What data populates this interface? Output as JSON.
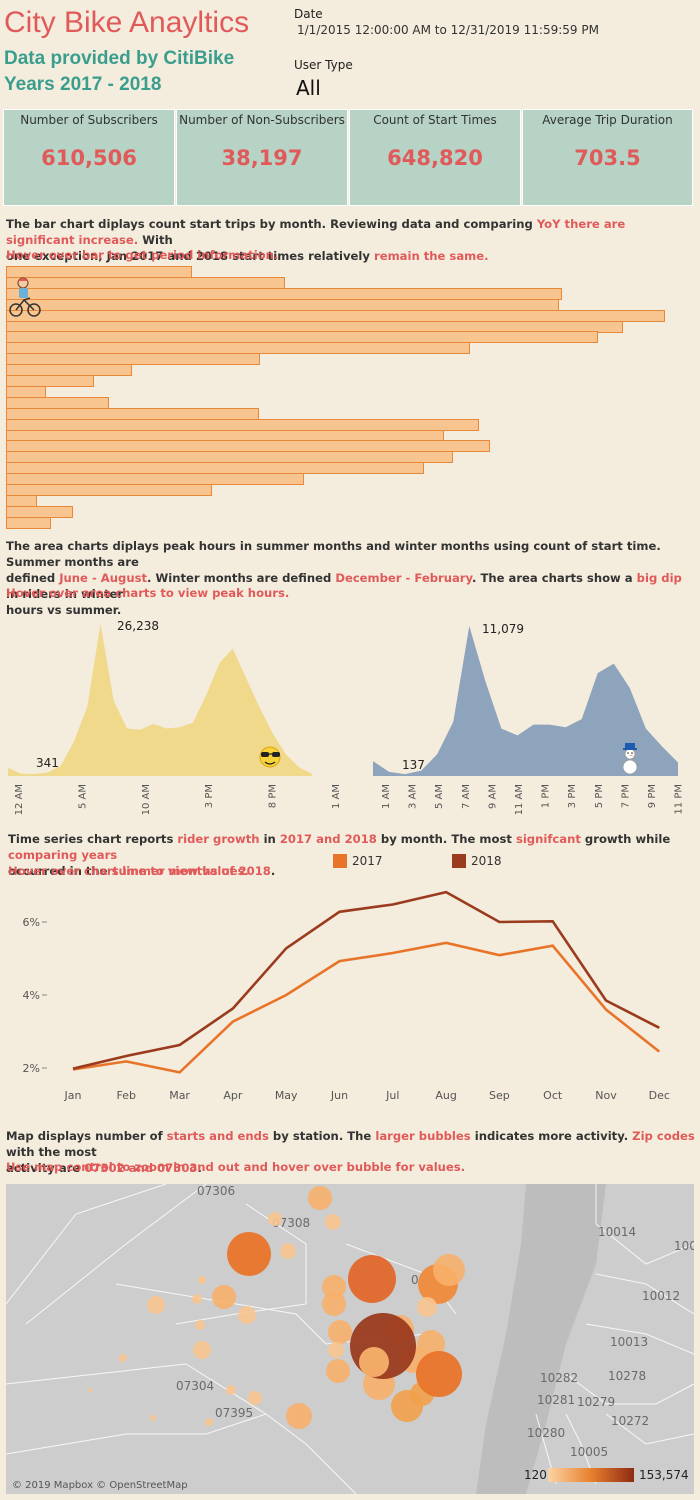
{
  "header": {
    "title": "City Bike Anayltics",
    "subtitle1": "Data provided by CitiBike",
    "subtitle2": "Years 2017 - 2018"
  },
  "filters": {
    "date_label": "Date",
    "date_value": "1/1/2015 12:00:00 AM to 12/31/2019 11:59:59 PM",
    "usertype_label": "User Type",
    "usertype_value": "All"
  },
  "kpis": [
    {
      "label": "Number of Subscribers",
      "value": "610,506"
    },
    {
      "label": "Number of Non-Subscribers",
      "value": "38,197"
    },
    {
      "label": "Count of Start Times",
      "value": "648,820"
    },
    {
      "label": "Average Trip Duration",
      "value": "703.5"
    }
  ],
  "bar_section": {
    "desc1": "The bar chart diplays count start trips by month. Reviewing data and comparing",
    "desc1_hl": "YoY there are significant increase.",
    "desc1_end": "With",
    "desc2": "one exception, Jan 2017 and 2018 start times relatively",
    "desc2_hl": "remain the same.",
    "hint": "Hover over bar to get period information."
  },
  "area_section": {
    "desc1": "The area charts diplays peak hours in summer months and winter months using count of start time. Summer months are",
    "desc2_a": "defined",
    "desc2_hl1": "June - August",
    "desc2_b": ". Winter months are defined",
    "desc2_hl2": "December - February",
    "desc2_c": ". The area charts show a",
    "desc2_hl3": "big dip",
    "desc2_d": "in riders in winter",
    "desc3": "hours vs summer.",
    "hint": "Hover over area charts to view peak hours.",
    "summer_max_label": "26,238",
    "summer_min_label": "341",
    "winter_max_label": "11,079",
    "winter_min_label": "137",
    "summer_ticks": [
      "12 AM",
      "5 AM",
      "10 AM",
      "3 PM",
      "8 PM",
      "1 AM"
    ],
    "winter_ticks": [
      "1 AM",
      "3 AM",
      "5 AM",
      "7 AM",
      "9 AM",
      "11 AM",
      "1 PM",
      "3 PM",
      "5 PM",
      "7 PM",
      "9 PM",
      "11 PM"
    ]
  },
  "line_section": {
    "desc1_a": "Time series chart reports",
    "desc1_hl1": "rider growth",
    "desc1_b": "in",
    "desc1_hl2": "2017 and 2018",
    "desc1_c": "by month. The most",
    "desc1_hl3": "signifcant",
    "desc1_d": "growth while",
    "desc1_hl4": "comparing years",
    "desc2_a": "occurred in the",
    "desc2_hl": "summer months of 2018",
    "desc2_b": ".",
    "hint": "Hover over chart line to view values.",
    "legend_2017": "2017",
    "legend_2018": "2018",
    "yticks": [
      "6%",
      "4%",
      "2%"
    ]
  },
  "map_section": {
    "desc1_a": "Map displays number of",
    "desc1_hl1": "starts and ends",
    "desc1_b": "by station. The",
    "desc1_hl2": "larger bubbles",
    "desc1_c": "indicates more activity.",
    "desc1_hl3": "Zip codes",
    "desc1_d": "with the most",
    "desc2_a": "activity are",
    "desc2_hl": "07302 and 07303",
    "desc2_b": ".",
    "hint": "Use map control to zoom in and out and hover over bubble for values.",
    "zip_labels": [
      "07306",
      "07308",
      "07304",
      "07395",
      "10014",
      "10012",
      "10013",
      "10278",
      "10282",
      "10281",
      "10279",
      "10272",
      "10280",
      "10005",
      "100",
      "0"
    ],
    "attribution": "© 2019 Mapbox © OpenStreetMap",
    "legend_min": "120",
    "legend_max": "153,574"
  },
  "chart_data": [
    {
      "type": "bar",
      "title": "",
      "orientation": "horizontal",
      "values": [
        186,
        279,
        556,
        553,
        659,
        617,
        592,
        464,
        254,
        126,
        88,
        40,
        103,
        253,
        473,
        438,
        484,
        447,
        418,
        298,
        206,
        31,
        67,
        45
      ],
      "value_note": "bar lengths only; no axis printed"
    },
    {
      "type": "area",
      "series": [
        {
          "name": "",
          "values": [
            1400,
            400,
            341,
            600,
            1800,
            6000,
            12000,
            26238,
            13000,
            8200,
            8000,
            9000,
            8200,
            8400,
            9200,
            14000,
            19500,
            22000,
            17000,
            12000,
            7500,
            3800,
            1500,
            400
          ]
        }
      ],
      "x": [
        "12 AM",
        "1 AM",
        "2 AM",
        "3 AM",
        "4 AM",
        "5 AM",
        "6 AM",
        "7 AM",
        "8 AM",
        "9 AM",
        "10 AM",
        "11 AM",
        "12 PM",
        "1 PM",
        "2 PM",
        "3 PM",
        "4 PM",
        "5 PM",
        "6 PM",
        "7 PM",
        "8 PM",
        "9 PM",
        "10 PM",
        "11 PM"
      ],
      "annotations": [
        "26,238",
        "341"
      ]
    },
    {
      "type": "area",
      "series": [
        {
          "name": "",
          "values": [
            1100,
            300,
            137,
            400,
            1600,
            4000,
            11079,
            7000,
            3500,
            3000,
            3800,
            3800,
            3600,
            4200,
            7600,
            8300,
            6500,
            3500,
            2200,
            1000
          ]
        }
      ],
      "annotations": [
        "11,079",
        "137"
      ]
    },
    {
      "type": "line",
      "categories": [
        "Jan",
        "Feb",
        "Mar",
        "Apr",
        "May",
        "Jun",
        "Jul",
        "Aug",
        "Sep",
        "Oct",
        "Nov",
        "Dec"
      ],
      "series": [
        {
          "name": "2017",
          "values": [
            1.96,
            2.18,
            1.88,
            3.27,
            4.0,
            4.93,
            5.15,
            5.43,
            5.09,
            5.35,
            3.6,
            2.45
          ]
        },
        {
          "name": "2018",
          "values": [
            1.98,
            2.33,
            2.63,
            3.63,
            5.28,
            6.28,
            6.48,
            6.82,
            6.0,
            6.02,
            3.85,
            3.1
          ]
        }
      ],
      "ylim": [
        1.6,
        7.0
      ],
      "yticks": [
        "6%",
        "4%",
        "2%"
      ],
      "grid": false,
      "legend": "top"
    }
  ]
}
